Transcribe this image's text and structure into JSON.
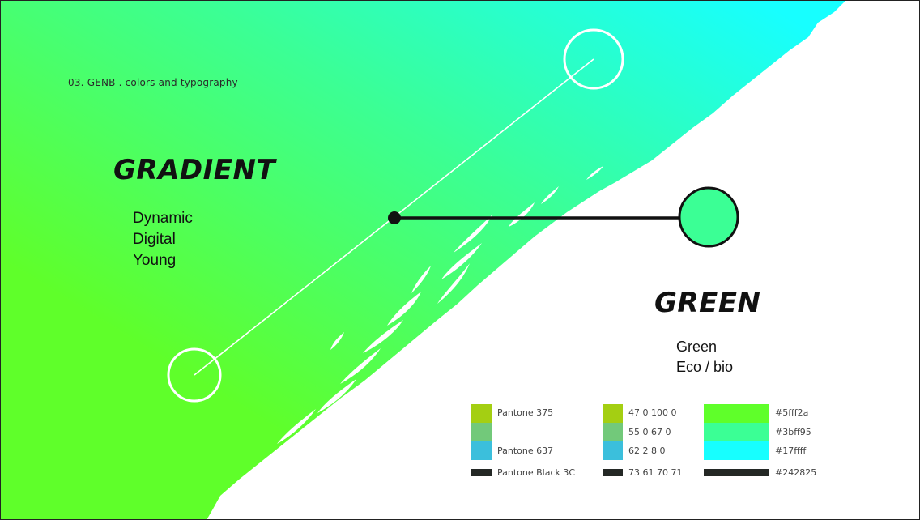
{
  "subtitle": "03. GENB . colors and typography",
  "gradient": {
    "title": "GRADIENT",
    "words": [
      "Dynamic",
      "Digital",
      "Young"
    ]
  },
  "green": {
    "title": "GREEN",
    "words": [
      "Green",
      "Eco / bio"
    ]
  },
  "palette": {
    "pantone": [
      "Pantone 375",
      "Pantone 637",
      "Pantone Black 3C"
    ],
    "cmyk": [
      "47 0 100 0",
      "55 0 67 0",
      "62 2 8 0",
      "73 61 70 71"
    ],
    "hex": [
      "#5fff2a",
      "#3bff95",
      "#17ffff",
      "#242825"
    ]
  },
  "colors": {
    "pantone_375": "#a4cf12",
    "mid_green": "#72c97a",
    "pantone_637": "#3bbfdc",
    "black_3c": "#242825",
    "gradient_green": "#5fff2a",
    "gradient_mint": "#3bff95",
    "gradient_cyan": "#17ffff",
    "accent_circle": "#3bff95"
  }
}
